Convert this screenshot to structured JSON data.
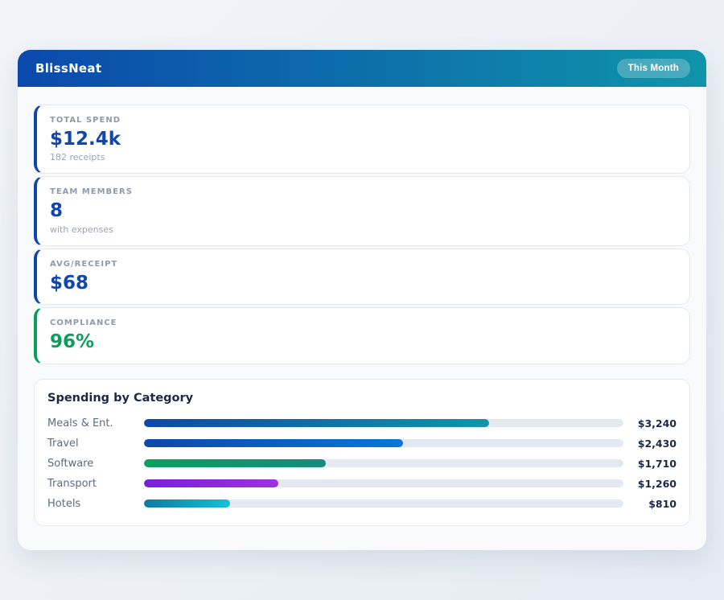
{
  "header": {
    "title": "BlissNeat",
    "badge": "This Month"
  },
  "stats": [
    {
      "label": "TOTAL SPEND",
      "value": "$12.4k",
      "sub": "182 receipts",
      "accent": "#0d47ab",
      "value_color": "#1146ad"
    },
    {
      "label": "TEAM MEMBERS",
      "value": "8",
      "sub": "with expenses",
      "accent": "#0d47ab",
      "value_color": "#1146ad"
    },
    {
      "label": "AVG/RECEIPT",
      "value": "$68",
      "sub": "",
      "accent": "#0d47ab",
      "value_color": "#1146ad"
    },
    {
      "label": "COMPLIANCE",
      "value": "96%",
      "sub": "",
      "accent": "#0a9e5c",
      "value_color": "#0a9e5c"
    }
  ],
  "chart_data": {
    "type": "bar",
    "orientation": "horizontal",
    "title": "Spending by Category",
    "categories": [
      "Meals & Ent.",
      "Travel",
      "Software",
      "Transport",
      "Hotels"
    ],
    "values": [
      3240,
      2430,
      1710,
      1260,
      810
    ],
    "value_labels": [
      "$3,240",
      "$2,430",
      "$1,710",
      "$1,260",
      "$810"
    ],
    "xlim": [
      0,
      4500
    ],
    "grid": false,
    "legend": "none",
    "track_color": "#e4e9f1",
    "bar_gradients": [
      [
        "#0d47ab",
        "#0e98a8"
      ],
      [
        "#0d47ab",
        "#0878d8"
      ],
      [
        "#0ba05c",
        "#158a80"
      ],
      [
        "#7a1ed8",
        "#9c33e2"
      ],
      [
        "#0d7ba3",
        "#14c0d8"
      ]
    ]
  }
}
